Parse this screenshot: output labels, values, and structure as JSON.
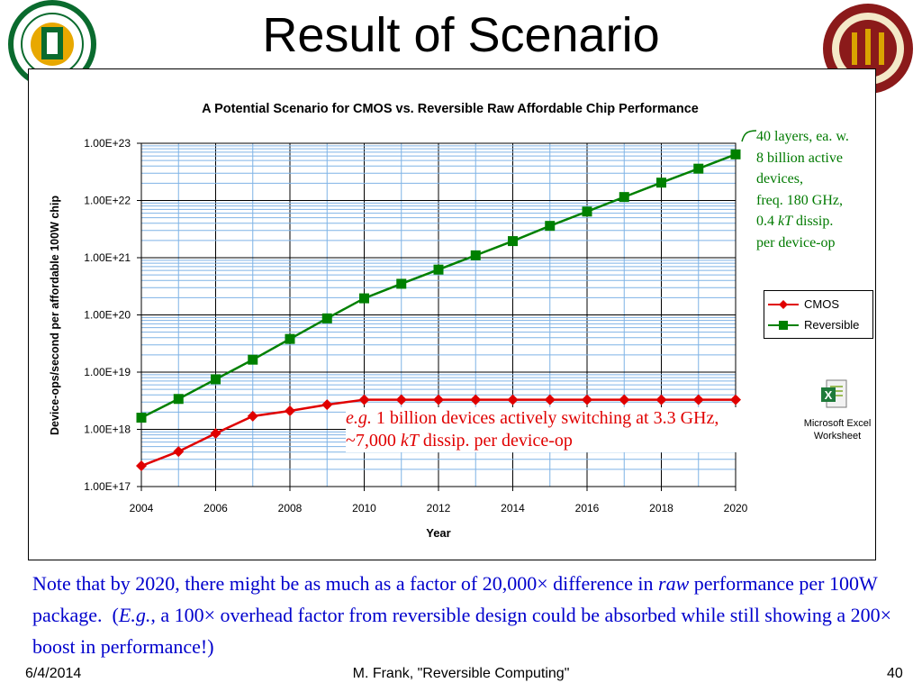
{
  "slide": {
    "title": "Result of Scenario",
    "note_parts": [
      "Note that by 2020, there might be as much as a factor of 20,000× difference in ",
      "raw",
      " performance per 100W package.  (",
      "E.g.",
      ", a 100× overhead factor from reversible design could be absorbed while still showing a 200× boost in performance!)"
    ],
    "footer": {
      "date": "6/4/2014",
      "author": "M. Frank, \"Reversible Computing\"",
      "page": "40"
    }
  },
  "annotations": {
    "top_green": [
      "40 layers, ea. w.",
      "8 billion active",
      "devices,",
      "freq. 180 GHz,",
      "0.4 ",
      "kT",
      " dissip.",
      "per device-op"
    ],
    "red_parts": [
      "e.g.",
      " 1 billion devices actively switching at 3.3 GHz, ~7,000 ",
      "kT",
      " dissip. per device-op"
    ]
  },
  "embedded_object": {
    "label_line1": "Microsoft Excel",
    "label_line2": "Worksheet",
    "icon": "excel-worksheet-icon"
  },
  "colors": {
    "cmos": "#e00000",
    "reversible": "#008000",
    "grid": "#7fb3e6",
    "note": "#0000cc",
    "green_annot": "#007a00"
  },
  "chart_data": {
    "type": "line",
    "title": "A Potential Scenario for CMOS vs. Reversible Raw Affordable Chip Performance",
    "xlabel": "Year",
    "ylabel": "Device-ops/second per affordable 100W chip",
    "yscale": "log",
    "ylim": [
      1e+17,
      1e+23
    ],
    "xlim": [
      2004,
      2020
    ],
    "x_ticks": [
      "2004",
      "2006",
      "2008",
      "2010",
      "2012",
      "2014",
      "2016",
      "2018",
      "2020"
    ],
    "y_ticks": [
      "1.00E+17",
      "1.00E+18",
      "1.00E+19",
      "1.00E+20",
      "1.00E+21",
      "1.00E+22",
      "1.00E+23"
    ],
    "x": [
      2004,
      2005,
      2006,
      2007,
      2008,
      2009,
      2010,
      2011,
      2012,
      2013,
      2014,
      2015,
      2016,
      2017,
      2018,
      2019,
      2020
    ],
    "series": [
      {
        "name": "CMOS",
        "marker": "diamond",
        "values": [
          2.3e+17,
          4.1e+17,
          8.5e+17,
          1.7e+18,
          2.1e+18,
          2.7e+18,
          3.3e+18,
          3.3e+18,
          3.3e+18,
          3.3e+18,
          3.3e+18,
          3.3e+18,
          3.3e+18,
          3.3e+18,
          3.3e+18,
          3.3e+18,
          3.3e+18
        ]
      },
      {
        "name": "Reversible",
        "marker": "square",
        "values": [
          1.6e+18,
          3.4e+18,
          7.5e+18,
          1.65e+19,
          3.8e+19,
          8.7e+19,
          1.95e+20,
          3.5e+20,
          6.2e+20,
          1.1e+21,
          1.95e+21,
          3.6e+21,
          6.4e+21,
          1.15e+22,
          2.05e+22,
          3.6e+22,
          6.4e+22
        ]
      }
    ],
    "legend": {
      "position": "right"
    },
    "grid": true
  }
}
